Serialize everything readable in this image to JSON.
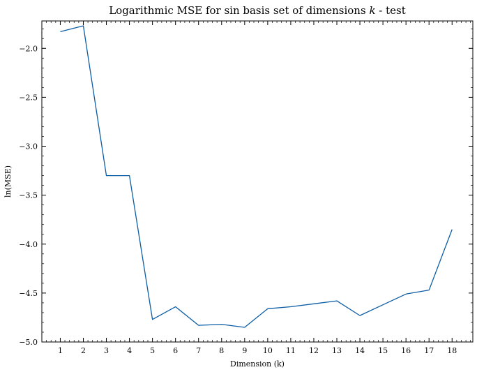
{
  "chart_data": {
    "type": "line",
    "title_prefix": "Logarithmic MSE for sin basis set of dimensions ",
    "title_var": "k",
    "title_suffix": " - test",
    "xlabel": "Dimension (k)",
    "ylabel": "ln(MSE)",
    "x": [
      1,
      2,
      3,
      4,
      5,
      6,
      7,
      8,
      9,
      10,
      11,
      12,
      13,
      14,
      15,
      16,
      17,
      18
    ],
    "series": [
      {
        "values": [
          -1.83,
          -1.77,
          -3.3,
          -3.3,
          -4.77,
          -4.64,
          -4.83,
          -4.82,
          -4.85,
          -4.66,
          -4.64,
          -4.61,
          -4.58,
          -4.73,
          -4.62,
          -4.51,
          -4.47,
          -3.85
        ],
        "color": "#0C5DA5"
      }
    ],
    "xlim": [
      0.2,
      18.9
    ],
    "ylim": [
      -5.0,
      -1.72
    ],
    "x_ticks": [
      1,
      2,
      3,
      4,
      5,
      6,
      7,
      8,
      9,
      10,
      11,
      12,
      13,
      14,
      15,
      16,
      17,
      18
    ],
    "y_ticks": [
      -5.0,
      -4.5,
      -4.0,
      -3.5,
      -3.0,
      -2.5,
      -2.0
    ],
    "y_tick_labels": [
      "−5.0",
      "−4.5",
      "−4.0",
      "−3.5",
      "−3.0",
      "−2.5",
      "−2.0"
    ],
    "grid": false
  }
}
